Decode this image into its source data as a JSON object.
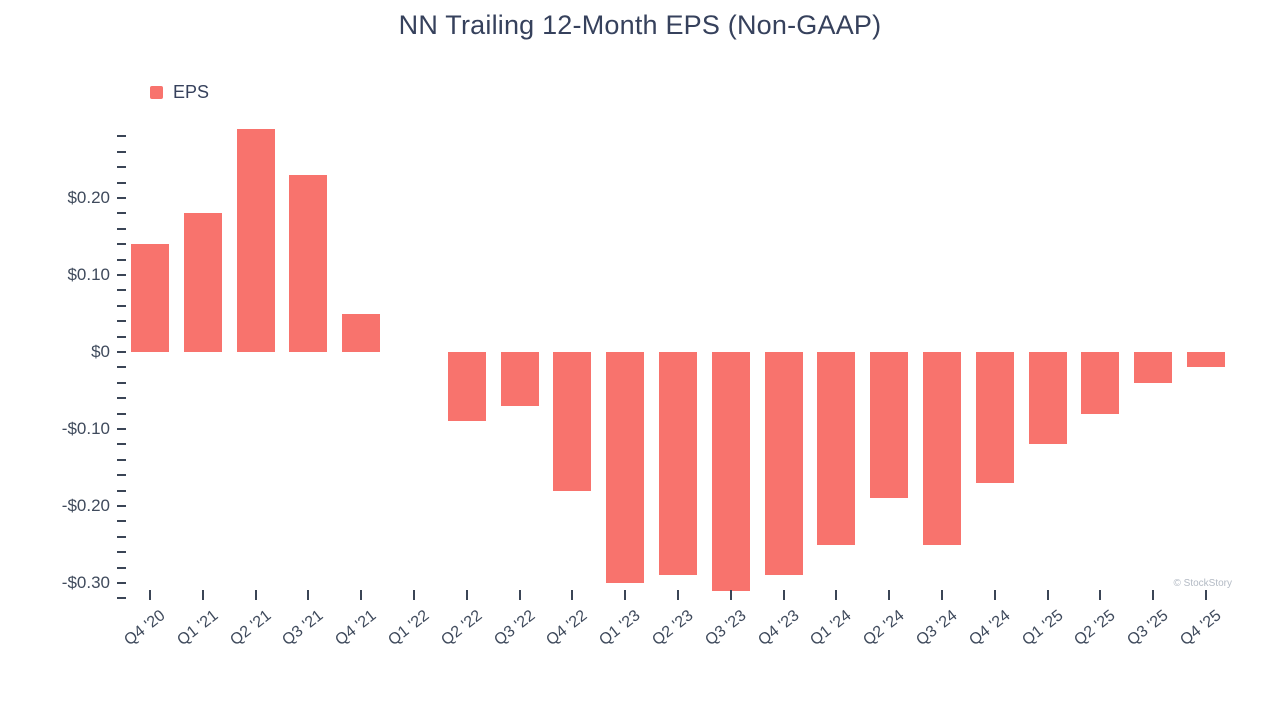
{
  "watermark": "© StockStory",
  "chart_data": {
    "type": "bar",
    "title": "NN Trailing 12-Month EPS (Non-GAAP)",
    "legend_label": "EPS",
    "series_name": "EPS",
    "bar_color": "#f8736d",
    "grid": false,
    "legend_position": "top-left",
    "xlabel": "",
    "ylabel": "",
    "ylim": [
      -0.32,
      0.29
    ],
    "minor_tick_step": 0.02,
    "categories": [
      "Q4 '20",
      "Q1 '21",
      "Q2 '21",
      "Q3 '21",
      "Q4 '21",
      "Q1 '22",
      "Q2 '22",
      "Q3 '22",
      "Q4 '22",
      "Q1 '23",
      "Q2 '23",
      "Q3 '23",
      "Q4 '23",
      "Q1 '24",
      "Q2 '24",
      "Q3 '24",
      "Q4 '24",
      "Q1 '25",
      "Q2 '25",
      "Q3 '25",
      "Q4 '25"
    ],
    "values": [
      0.14,
      0.18,
      0.29,
      0.23,
      0.05,
      0,
      -0.09,
      -0.07,
      -0.18,
      -0.3,
      -0.29,
      -0.31,
      -0.29,
      -0.25,
      -0.19,
      -0.25,
      -0.17,
      -0.12,
      -0.08,
      -0.04,
      -0.02
    ],
    "y_ticks": [
      {
        "label": "$0.20",
        "value": 0.2
      },
      {
        "label": "$0.10",
        "value": 0.1
      },
      {
        "label": "$0",
        "value": 0.0
      },
      {
        "label": "-$0.10",
        "value": -0.1
      },
      {
        "label": "-$0.20",
        "value": -0.2
      },
      {
        "label": "-$0.30",
        "value": -0.3
      }
    ]
  }
}
